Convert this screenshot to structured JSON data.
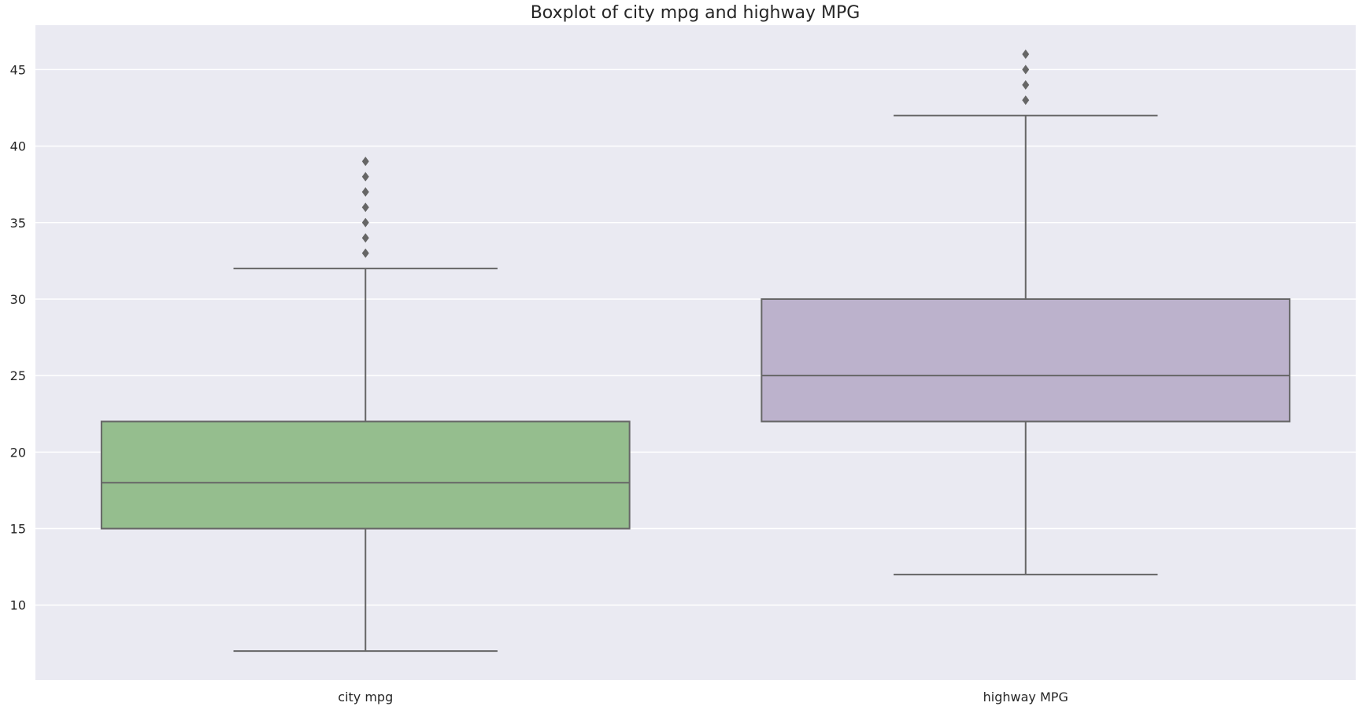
{
  "chart_data": {
    "type": "boxplot",
    "title": "Boxplot of city mpg and highway MPG",
    "xlabel": "",
    "ylabel": "",
    "ylim": [
      5.1,
      47.9
    ],
    "yticks": [
      10,
      15,
      20,
      25,
      30,
      35,
      40,
      45
    ],
    "grid": true,
    "legend": "none",
    "colors": {
      "background": "#eaeaf2",
      "grid": "#ffffff",
      "line": "#666666"
    },
    "series": [
      {
        "category": "city mpg",
        "color": "#95be8e",
        "whisker_low": 7,
        "q1": 15,
        "median": 18,
        "q3": 22,
        "whisker_high": 32,
        "outliers": [
          33,
          34,
          35,
          36,
          37,
          38,
          39
        ]
      },
      {
        "category": "highway MPG",
        "color": "#bcb2cc",
        "whisker_low": 12,
        "q1": 22,
        "median": 25,
        "q3": 30,
        "whisker_high": 42,
        "outliers": [
          43,
          44,
          45,
          46
        ]
      }
    ]
  }
}
